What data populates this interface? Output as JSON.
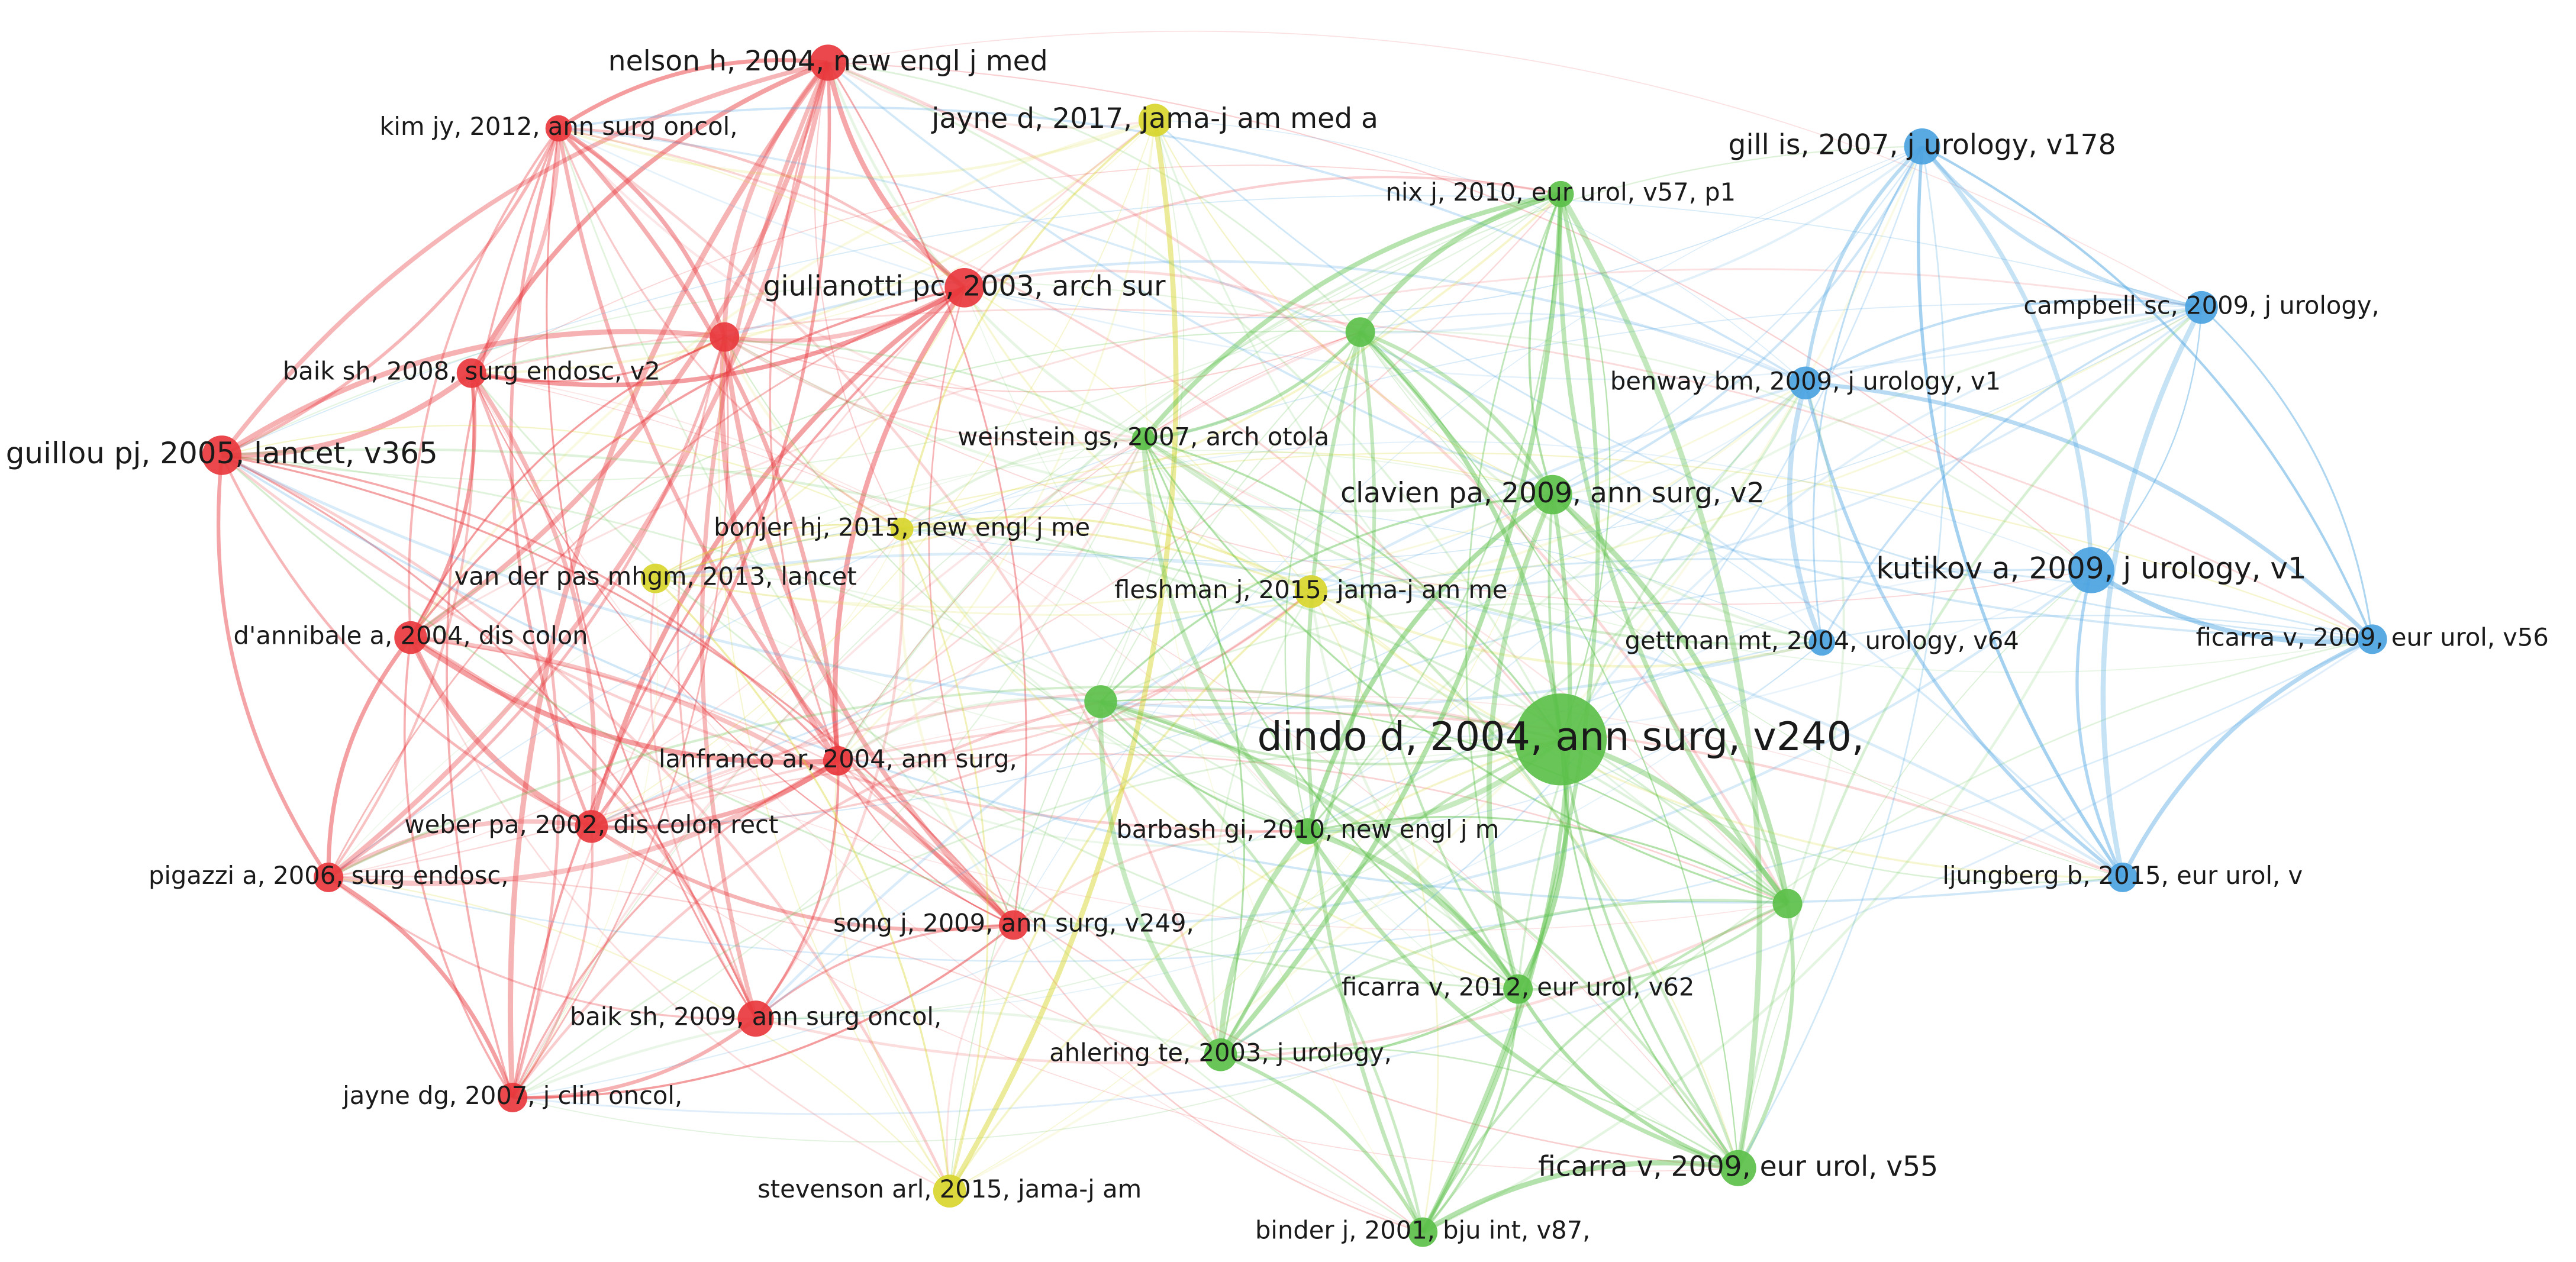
{
  "nodes": [
    {
      "label": "nelson h, 2004, new engl j med",
      "color": "#e8383d"
    },
    {
      "label": "kim jy, 2012, ann surg oncol,",
      "color": "#e8383d"
    },
    {
      "label": "giulianotti pc, 2003, arch sur",
      "color": "#e8383d"
    },
    {
      "color": "#e8383d"
    },
    {
      "label": "baik sh, 2008, surg endosc, v2",
      "color": "#e8383d"
    },
    {
      "label": "guillou pj, 2005, lancet, v365",
      "color": "#e8383d"
    },
    {
      "label": "d'annibale a, 2004, dis colon",
      "color": "#e8383d"
    },
    {
      "label": "lanfranco ar, 2004, ann surg,",
      "color": "#e8383d"
    },
    {
      "label": "weber pa, 2002, dis colon rect",
      "color": "#e8383d"
    },
    {
      "label": "pigazzi a, 2006, surg endosc,",
      "color": "#e8383d"
    },
    {
      "label": "song j, 2009, ann surg, v249,",
      "color": "#e8383d"
    },
    {
      "label": "baik sh, 2009, ann surg oncol,",
      "color": "#e8383d"
    },
    {
      "label": "jayne dg, 2007, j clin oncol,",
      "color": "#e8383d"
    },
    {
      "label": "jayne d, 2017, jama-j am med a",
      "color": "#d8d62e"
    },
    {
      "label": "bonjer hj, 2015, new engl j me",
      "color": "#d8d62e"
    },
    {
      "label": "van der pas mhgm, 2013, lancet",
      "color": "#d8d62e"
    },
    {
      "label": "fleshman j, 2015, jama-j am me",
      "color": "#d8d62e"
    },
    {
      "label": "stevenson arl, 2015, jama-j am",
      "color": "#d8d62e"
    },
    {
      "label": "nix j, 2010, eur urol, v57, p1",
      "color": "#5cc04a"
    },
    {
      "color": "#5cc04a"
    },
    {
      "label": "weinstein gs, 2007, arch otola",
      "color": "#5cc04a"
    },
    {
      "label": "clavien pa, 2009, ann surg, v2",
      "color": "#5cc04a"
    },
    {
      "color": "#5cc04a"
    },
    {
      "label": "dindo d, 2004, ann surg, v240,",
      "color": "#5cc04a"
    },
    {
      "label": "barbash gi, 2010, new engl j m",
      "color": "#5cc04a"
    },
    {
      "color": "#5cc04a"
    },
    {
      "label": "ficarra v, 2012, eur urol, v62",
      "color": "#5cc04a"
    },
    {
      "label": "ahlering te, 2003, j urology,",
      "color": "#5cc04a"
    },
    {
      "label": "ficarra v, 2009, eur urol, v55",
      "color": "#5cc04a"
    },
    {
      "label": "binder j, 2001, bju int, v87,",
      "color": "#5cc04a"
    },
    {
      "label": "gill is, 2007, j urology, v178",
      "color": "#4ba3e1"
    },
    {
      "label": "campbell sc, 2009, j urology,",
      "color": "#4ba3e1"
    },
    {
      "label": "benway bm, 2009, j urology, v1",
      "color": "#4ba3e1"
    },
    {
      "label": "kutikov a, 2009, j urology, v1",
      "color": "#4ba3e1"
    },
    {
      "label": "gettman mt, 2004, urology, v64",
      "color": "#4ba3e1"
    },
    {
      "label": "ficarra v, 2009, eur urol, v56",
      "color": "#4ba3e1"
    },
    {
      "label": "ljungberg b, 2015, eur urol, v",
      "color": "#4ba3e1"
    }
  ]
}
